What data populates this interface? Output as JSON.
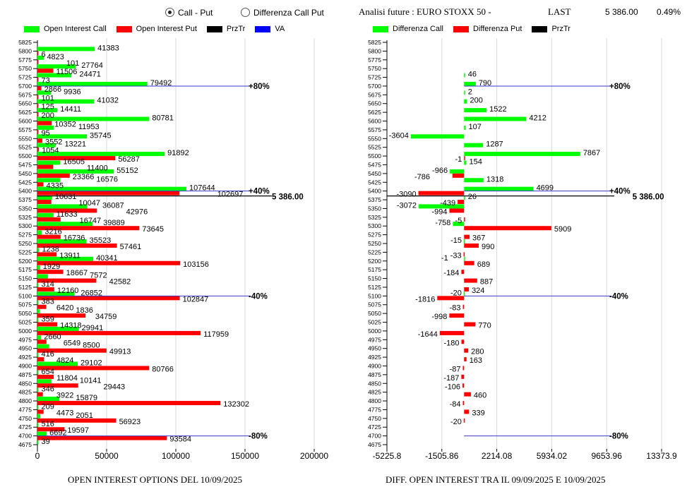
{
  "header": {
    "radio_call_put": "Call - Put",
    "radio_diff": "Differenza Call Put",
    "radio_selected": "call_put",
    "title": "Analisi future : EURO STOXX 50 -",
    "last_label": "LAST",
    "last_value": "5 386.00",
    "change": "0.49%"
  },
  "legend_left": [
    {
      "label": "Open Interest Call",
      "color": "#00ff00"
    },
    {
      "label": "Open Interest Put",
      "color": "#ff0000"
    },
    {
      "label": "PrzTr",
      "color": "#000000"
    },
    {
      "label": "VA",
      "color": "#0000ff"
    }
  ],
  "legend_right": [
    {
      "label": "Differenza Call",
      "color": "#00ff00"
    },
    {
      "label": "Differenza Put",
      "color": "#ff0000"
    },
    {
      "label": "PrzTr",
      "color": "#000000"
    }
  ],
  "chart_data": [
    {
      "type": "bar",
      "orientation": "horizontal",
      "title": "OPEN INTEREST OPTIONS DEL 10/09/2025",
      "categories": [
        5825,
        5800,
        5775,
        5750,
        5725,
        5700,
        5675,
        5650,
        5625,
        5600,
        5575,
        5550,
        5525,
        5500,
        5475,
        5450,
        5425,
        5400,
        5375,
        5350,
        5325,
        5300,
        5275,
        5250,
        5225,
        5200,
        5175,
        5150,
        5125,
        5100,
        5075,
        5050,
        5025,
        5000,
        4975,
        4950,
        4925,
        4900,
        4875,
        4850,
        4825,
        4800,
        4775,
        4750,
        4725,
        4700,
        4675
      ],
      "series": [
        {
          "name": "Open Interest Call",
          "color": "#00ff00",
          "values": [
            null,
            41383,
            4823,
            27764,
            24471,
            79492,
            9936,
            41032,
            14411,
            80781,
            11953,
            35745,
            13221,
            91892,
            16505,
            55152,
            16576,
            107644,
            10631,
            36087,
            11633,
            39889,
            3216,
            35523,
            1238,
            40341,
            1929,
            7572,
            314,
            26852,
            383,
            1836,
            359,
            29941,
            2660,
            8500,
            416,
            29102,
            654,
            10141,
            346,
            15879,
            209,
            2051,
            516,
            6692,
            39
          ]
        },
        {
          "name": "Open Interest Put",
          "color": "#ff0000",
          "values": [
            null,
            6,
            101,
            11506,
            73,
            2866,
            101,
            125,
            200,
            10352,
            95,
            3552,
            1054,
            56287,
            11400,
            23366,
            4335,
            102697,
            10047,
            42976,
            16747,
            73645,
            16736,
            57461,
            13911,
            103156,
            18667,
            42582,
            12160,
            102847,
            6420,
            34759,
            14318,
            117959,
            6549,
            49913,
            4824,
            80766,
            11804,
            29443,
            3922,
            132302,
            4473,
            56923,
            19597,
            93584,
            null
          ]
        }
      ],
      "x_ticks": [
        "0",
        "50000",
        "100000",
        "150000",
        "200000"
      ],
      "xlim": [
        0,
        200000
      ],
      "grid": true,
      "przTr": {
        "value": 5386,
        "label": "5 386.00"
      },
      "va_lines": [
        {
          "strike": 5700,
          "label": "+80%"
        },
        {
          "strike": 5400,
          "label": "+40%"
        },
        {
          "strike": 5100,
          "label": "-40%"
        },
        {
          "strike": 4700,
          "label": "-80%"
        }
      ]
    },
    {
      "type": "bar",
      "orientation": "horizontal",
      "title": "DIFF. OPEN INTEREST TRA IL 09/09/2025 E 10/09/2025",
      "categories": [
        5825,
        5800,
        5775,
        5750,
        5725,
        5700,
        5675,
        5650,
        5625,
        5600,
        5575,
        5550,
        5525,
        5500,
        5475,
        5450,
        5425,
        5400,
        5375,
        5350,
        5325,
        5300,
        5275,
        5250,
        5225,
        5200,
        5175,
        5150,
        5125,
        5100,
        5075,
        5050,
        5025,
        5000,
        4975,
        4950,
        4925,
        4900,
        4875,
        4850,
        4825,
        4800,
        4775,
        4750,
        4725,
        4700,
        4675
      ],
      "series": [
        {
          "name": "Differenza Call",
          "color": "#00ff00",
          "values": [
            null,
            null,
            null,
            null,
            46,
            790,
            2,
            200,
            1522,
            4212,
            107,
            -3604,
            1287,
            7867,
            154,
            -966,
            1318,
            4699,
            26,
            -3072,
            null,
            -758,
            null,
            -15,
            null,
            -1,
            null,
            null,
            null,
            -20,
            null,
            null,
            null,
            null,
            null,
            null,
            null,
            null,
            null,
            null,
            null,
            null,
            null,
            null,
            null,
            null,
            null
          ]
        },
        {
          "name": "Differenza Put",
          "color": "#ff0000",
          "values": [
            null,
            null,
            null,
            null,
            null,
            null,
            null,
            null,
            null,
            null,
            null,
            null,
            null,
            -1,
            null,
            -786,
            null,
            -3090,
            -439,
            -994,
            -5,
            5909,
            367,
            990,
            -33,
            689,
            -184,
            887,
            324,
            -1816,
            -83,
            -998,
            770,
            -1644,
            -180,
            280,
            163,
            -87,
            -187,
            -106,
            460,
            -84,
            339,
            -20,
            null,
            null,
            null
          ]
        }
      ],
      "x_ticks": [
        "-5225.8",
        "-1505.86",
        "2214.08",
        "5934.02",
        "9653.96",
        "13373.9"
      ],
      "xlim": [
        -5225.8,
        13373.9
      ],
      "grid": true,
      "przTr": {
        "value": 5386,
        "label": "5 386.00"
      },
      "va_lines": [
        {
          "strike": 5700,
          "label": "+80%"
        },
        {
          "strike": 5400,
          "label": "+40%"
        },
        {
          "strike": 5100,
          "label": "-40%"
        },
        {
          "strike": 4700,
          "label": "-80%"
        }
      ]
    }
  ]
}
